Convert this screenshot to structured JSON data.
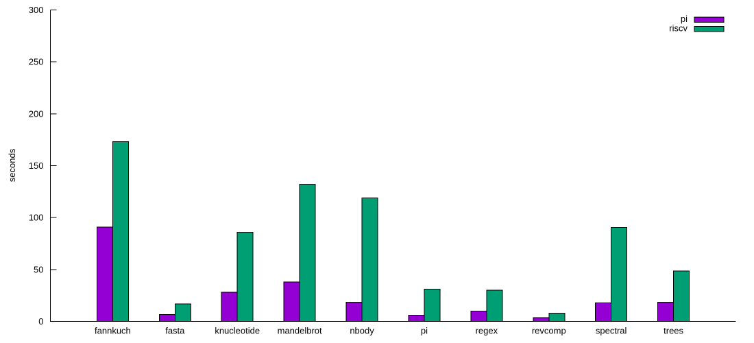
{
  "chart_data": {
    "type": "bar",
    "title": "",
    "xlabel": "",
    "ylabel": "seconds",
    "categories": [
      "fannkuch",
      "fasta",
      "knucleotide",
      "mandelbrot",
      "nbody",
      "pi",
      "regex",
      "revcomp",
      "spectral",
      "trees"
    ],
    "series": [
      {
        "name": "pi",
        "color": "#9400d3",
        "values": [
          91,
          6.5,
          28,
          38,
          18.5,
          6,
          10,
          3.5,
          18,
          18.5
        ]
      },
      {
        "name": "riscv",
        "color": "#009e73",
        "values": [
          173,
          17,
          86,
          132,
          119,
          31,
          30,
          8,
          90.5,
          48.5
        ]
      }
    ],
    "ylim": [
      0,
      300
    ],
    "yticks": [
      0,
      50,
      100,
      150,
      200,
      250,
      300
    ],
    "grid": false,
    "legend_position": "top-right",
    "bar_border_color": "#000000",
    "axis_color": "#000000",
    "text_color": "#000000",
    "background_color": "#ffffff"
  }
}
